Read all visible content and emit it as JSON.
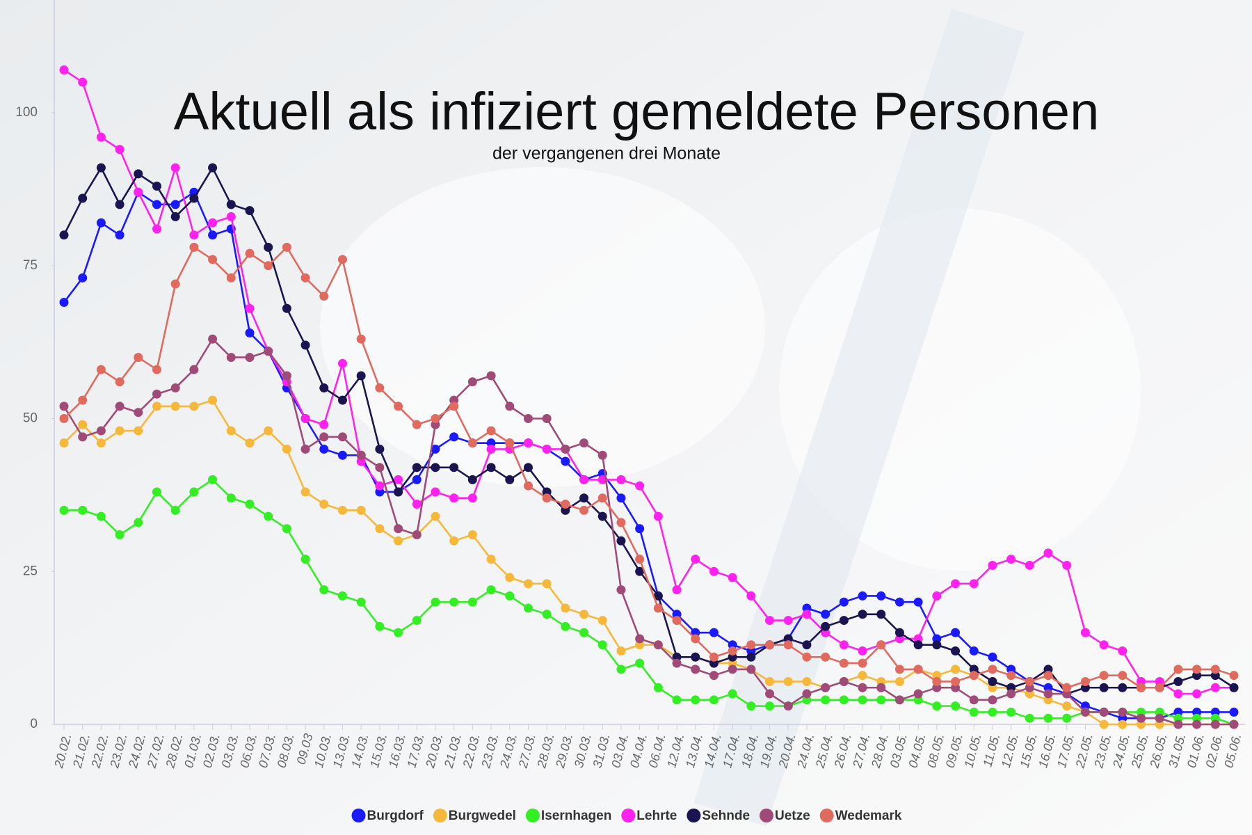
{
  "chart_data": {
    "type": "line",
    "title": "Aktuell als infiziert gemeldete Personen",
    "subtitle": "der vergangenen drei Monate",
    "categories": [
      "20.02.",
      "21.02.",
      "22.02.",
      "23.02.",
      "24.02.",
      "27.02.",
      "28.02.",
      "01.03.",
      "02.03.",
      "03.03.",
      "06.03.",
      "07.03.",
      "08.03.",
      "09.03",
      "10.03.",
      "13.03.",
      "14.03.",
      "15.03.",
      "16.03.",
      "17.03.",
      "20.03.",
      "21.03.",
      "22.03.",
      "23.03.",
      "24.03.",
      "27.03.",
      "28.03.",
      "29.03.",
      "30.03.",
      "31.03.",
      "03.04.",
      "04.04.",
      "06.04.",
      "12.04.",
      "13.04.",
      "14.04.",
      "17.04.",
      "18.04.",
      "19.04.",
      "20.04.",
      "24.04.",
      "25.04.",
      "26.04.",
      "27.04.",
      "28.04.",
      "03.05.",
      "04.05.",
      "08.05.",
      "09.05.",
      "10.05.",
      "11.05.",
      "12.05.",
      "15.05.",
      "16.05.",
      "17.05.",
      "22.05.",
      "23.05.",
      "24.05.",
      "25.05.",
      "26.05.",
      "31.05.",
      "01.06.",
      "02.06.",
      "05.06."
    ],
    "series": [
      {
        "name": "Burgdorf",
        "color": "#1a1aff",
        "values": [
          69,
          73,
          82,
          80,
          87,
          85,
          85,
          87,
          80,
          81,
          64,
          61,
          55,
          50,
          45,
          44,
          44,
          38,
          38,
          40,
          45,
          47,
          46,
          46,
          46,
          46,
          45,
          43,
          40,
          41,
          37,
          32,
          21,
          18,
          15,
          15,
          13,
          12,
          13,
          14,
          19,
          18,
          20,
          21,
          21,
          20,
          20,
          14,
          15,
          12,
          11,
          9,
          7,
          6,
          5,
          3,
          2,
          1,
          1,
          1,
          2,
          2,
          2,
          2
        ]
      },
      {
        "name": "Burgwedel",
        "color": "#f5b83a",
        "values": [
          46,
          49,
          46,
          48,
          48,
          52,
          52,
          52,
          53,
          48,
          46,
          48,
          45,
          38,
          36,
          35,
          35,
          32,
          30,
          31,
          34,
          30,
          31,
          27,
          24,
          23,
          23,
          19,
          18,
          17,
          12,
          13,
          13,
          11,
          11,
          10,
          10,
          9,
          7,
          7,
          7,
          6,
          7,
          8,
          7,
          7,
          9,
          8,
          9,
          8,
          6,
          6,
          5,
          4,
          3,
          2,
          0,
          0,
          0,
          0,
          0,
          0,
          0,
          0
        ]
      },
      {
        "name": "Isernhagen",
        "color": "#33ee22",
        "values": [
          35,
          35,
          34,
          31,
          33,
          38,
          35,
          38,
          40,
          37,
          36,
          34,
          32,
          27,
          22,
          21,
          20,
          16,
          15,
          17,
          20,
          20,
          20,
          22,
          21,
          19,
          18,
          16,
          15,
          13,
          9,
          10,
          6,
          4,
          4,
          4,
          5,
          3,
          3,
          3,
          4,
          4,
          4,
          4,
          4,
          4,
          4,
          3,
          3,
          2,
          2,
          2,
          1,
          1,
          1,
          2,
          2,
          2,
          2,
          2,
          1,
          1,
          1,
          0
        ]
      },
      {
        "name": "Lehrte",
        "color": "#ff22ee",
        "values": [
          107,
          105,
          96,
          94,
          87,
          81,
          91,
          80,
          82,
          83,
          68,
          61,
          56,
          50,
          49,
          59,
          43,
          39,
          40,
          36,
          38,
          37,
          37,
          45,
          45,
          46,
          45,
          45,
          40,
          40,
          40,
          39,
          34,
          22,
          27,
          25,
          24,
          21,
          17,
          17,
          18,
          15,
          13,
          12,
          13,
          14,
          14,
          21,
          23,
          23,
          26,
          27,
          26,
          28,
          26,
          15,
          13,
          12,
          7,
          7,
          5,
          5,
          6,
          6
        ]
      },
      {
        "name": "Sehnde",
        "color": "#1a1450",
        "values": [
          80,
          86,
          91,
          85,
          90,
          88,
          83,
          86,
          91,
          85,
          84,
          78,
          68,
          62,
          55,
          53,
          57,
          45,
          38,
          42,
          42,
          42,
          40,
          42,
          40,
          42,
          38,
          35,
          37,
          34,
          30,
          25,
          21,
          11,
          11,
          10,
          11,
          11,
          13,
          14,
          13,
          16,
          17,
          18,
          18,
          15,
          13,
          13,
          12,
          9,
          7,
          6,
          7,
          9,
          5,
          6,
          6,
          6,
          6,
          6,
          7,
          8,
          8,
          6
        ]
      },
      {
        "name": "Uetze",
        "color": "#a04a78",
        "values": [
          52,
          47,
          48,
          52,
          51,
          54,
          55,
          58,
          63,
          60,
          60,
          61,
          57,
          45,
          47,
          47,
          44,
          42,
          32,
          31,
          49,
          53,
          56,
          57,
          52,
          50,
          50,
          45,
          46,
          44,
          22,
          14,
          13,
          10,
          9,
          8,
          9,
          9,
          5,
          3,
          5,
          6,
          7,
          6,
          6,
          4,
          5,
          6,
          6,
          4,
          4,
          5,
          6,
          5,
          5,
          2,
          2,
          2,
          1,
          1,
          0,
          0,
          0,
          0
        ]
      },
      {
        "name": "Wedemark",
        "color": "#e06a5e",
        "values": [
          50,
          53,
          58,
          56,
          60,
          58,
          72,
          78,
          76,
          73,
          77,
          75,
          78,
          73,
          70,
          76,
          63,
          55,
          52,
          49,
          50,
          52,
          46,
          48,
          46,
          39,
          37,
          36,
          35,
          37,
          33,
          27,
          19,
          17,
          14,
          11,
          12,
          13,
          13,
          13,
          11,
          11,
          10,
          10,
          13,
          9,
          9,
          7,
          7,
          8,
          9,
          8,
          7,
          8,
          6,
          7,
          8,
          8,
          6,
          6,
          9,
          9,
          9,
          8
        ]
      }
    ],
    "ylim": [
      0,
      118
    ],
    "yticks": [
      0,
      25,
      50,
      75,
      100
    ],
    "grid": false
  }
}
